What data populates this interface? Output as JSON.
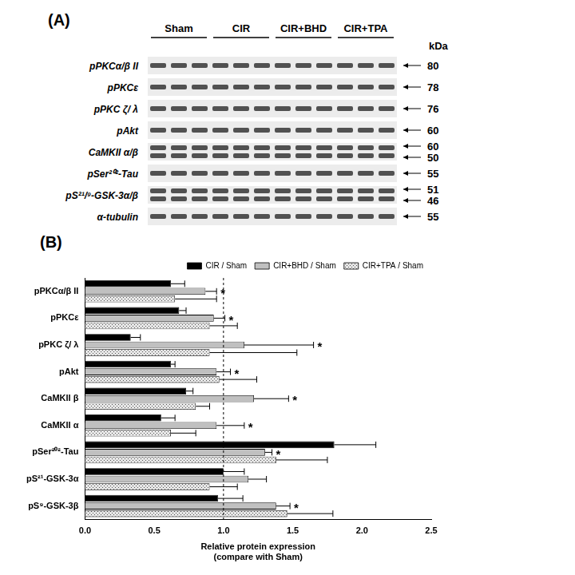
{
  "panel_a": {
    "label": "(A)",
    "unit": "kDa",
    "groups": [
      "Sham",
      "CIR",
      "CIR+BHD",
      "CIR+TPA"
    ],
    "rows": [
      {
        "label": "pPKCα/β II",
        "kda": [
          80
        ]
      },
      {
        "label": "pPKCε",
        "kda": [
          78
        ]
      },
      {
        "label": "pPKC ζ/ λ",
        "kda": [
          76
        ]
      },
      {
        "label": "pAkt",
        "kda": [
          60
        ]
      },
      {
        "label": "CaMKII α/β",
        "kda": [
          60,
          50
        ]
      },
      {
        "label": "pSer²⁰²-Tau",
        "kda": [
          55
        ]
      },
      {
        "label": "pS²¹/⁹-GSK-3α/β",
        "kda": [
          51,
          46
        ]
      },
      {
        "label": "α-tubulin",
        "kda": [
          55
        ]
      }
    ]
  },
  "chart_data": {
    "type": "bar",
    "title": "(B)",
    "orientation": "horizontal",
    "x_label": [
      "Relative protein expression",
      "(compare with Sham)"
    ],
    "categories": [
      "pPKCα/β II",
      "pPKCε",
      "pPKC ζ/ λ",
      "pAkt",
      "CaMKII β",
      "CaMKII α",
      "pSer²⁰²-Tau",
      "pS²¹-GSK-3α",
      "pS⁹-GSK-3β"
    ],
    "series": [
      {
        "name": "CIR / Sham",
        "color": "#000000",
        "values": [
          0.62,
          0.68,
          0.33,
          0.62,
          0.73,
          0.55,
          1.8,
          1.0,
          0.96
        ],
        "errors": [
          0.1,
          0.05,
          0.07,
          0.03,
          0.05,
          0.1,
          0.3,
          0.15,
          0.18
        ]
      },
      {
        "name": "CIR+BHD / Sham",
        "color": "#c0c0c0",
        "values": [
          0.87,
          0.93,
          1.15,
          0.95,
          1.22,
          0.95,
          1.3,
          1.18,
          1.38
        ],
        "errors": [
          0.08,
          0.08,
          0.5,
          0.1,
          0.25,
          0.2,
          0.05,
          0.13,
          0.1
        ],
        "significance": [
          "*",
          "*",
          "*",
          "*",
          "*",
          "*",
          "*",
          null,
          "*"
        ]
      },
      {
        "name": "CIR+TPA / Sham",
        "color": "#e6e6e6",
        "marker": "dots",
        "values": [
          0.65,
          0.9,
          0.9,
          0.97,
          0.8,
          0.62,
          1.38,
          0.9,
          1.46
        ],
        "errors": [
          0.3,
          0.2,
          0.63,
          0.27,
          0.1,
          0.18,
          0.37,
          0.2,
          0.33
        ]
      }
    ],
    "reference_line": 1,
    "xlim": [
      0,
      2.5
    ],
    "xticks": [
      {
        "value": 0,
        "label": "0.0"
      },
      0.5,
      {
        "value": 1,
        "label": "1.0"
      },
      1.5,
      {
        "value": 2,
        "label": "2.0"
      },
      2.5
    ],
    "grid": false,
    "legend": "upper right"
  }
}
